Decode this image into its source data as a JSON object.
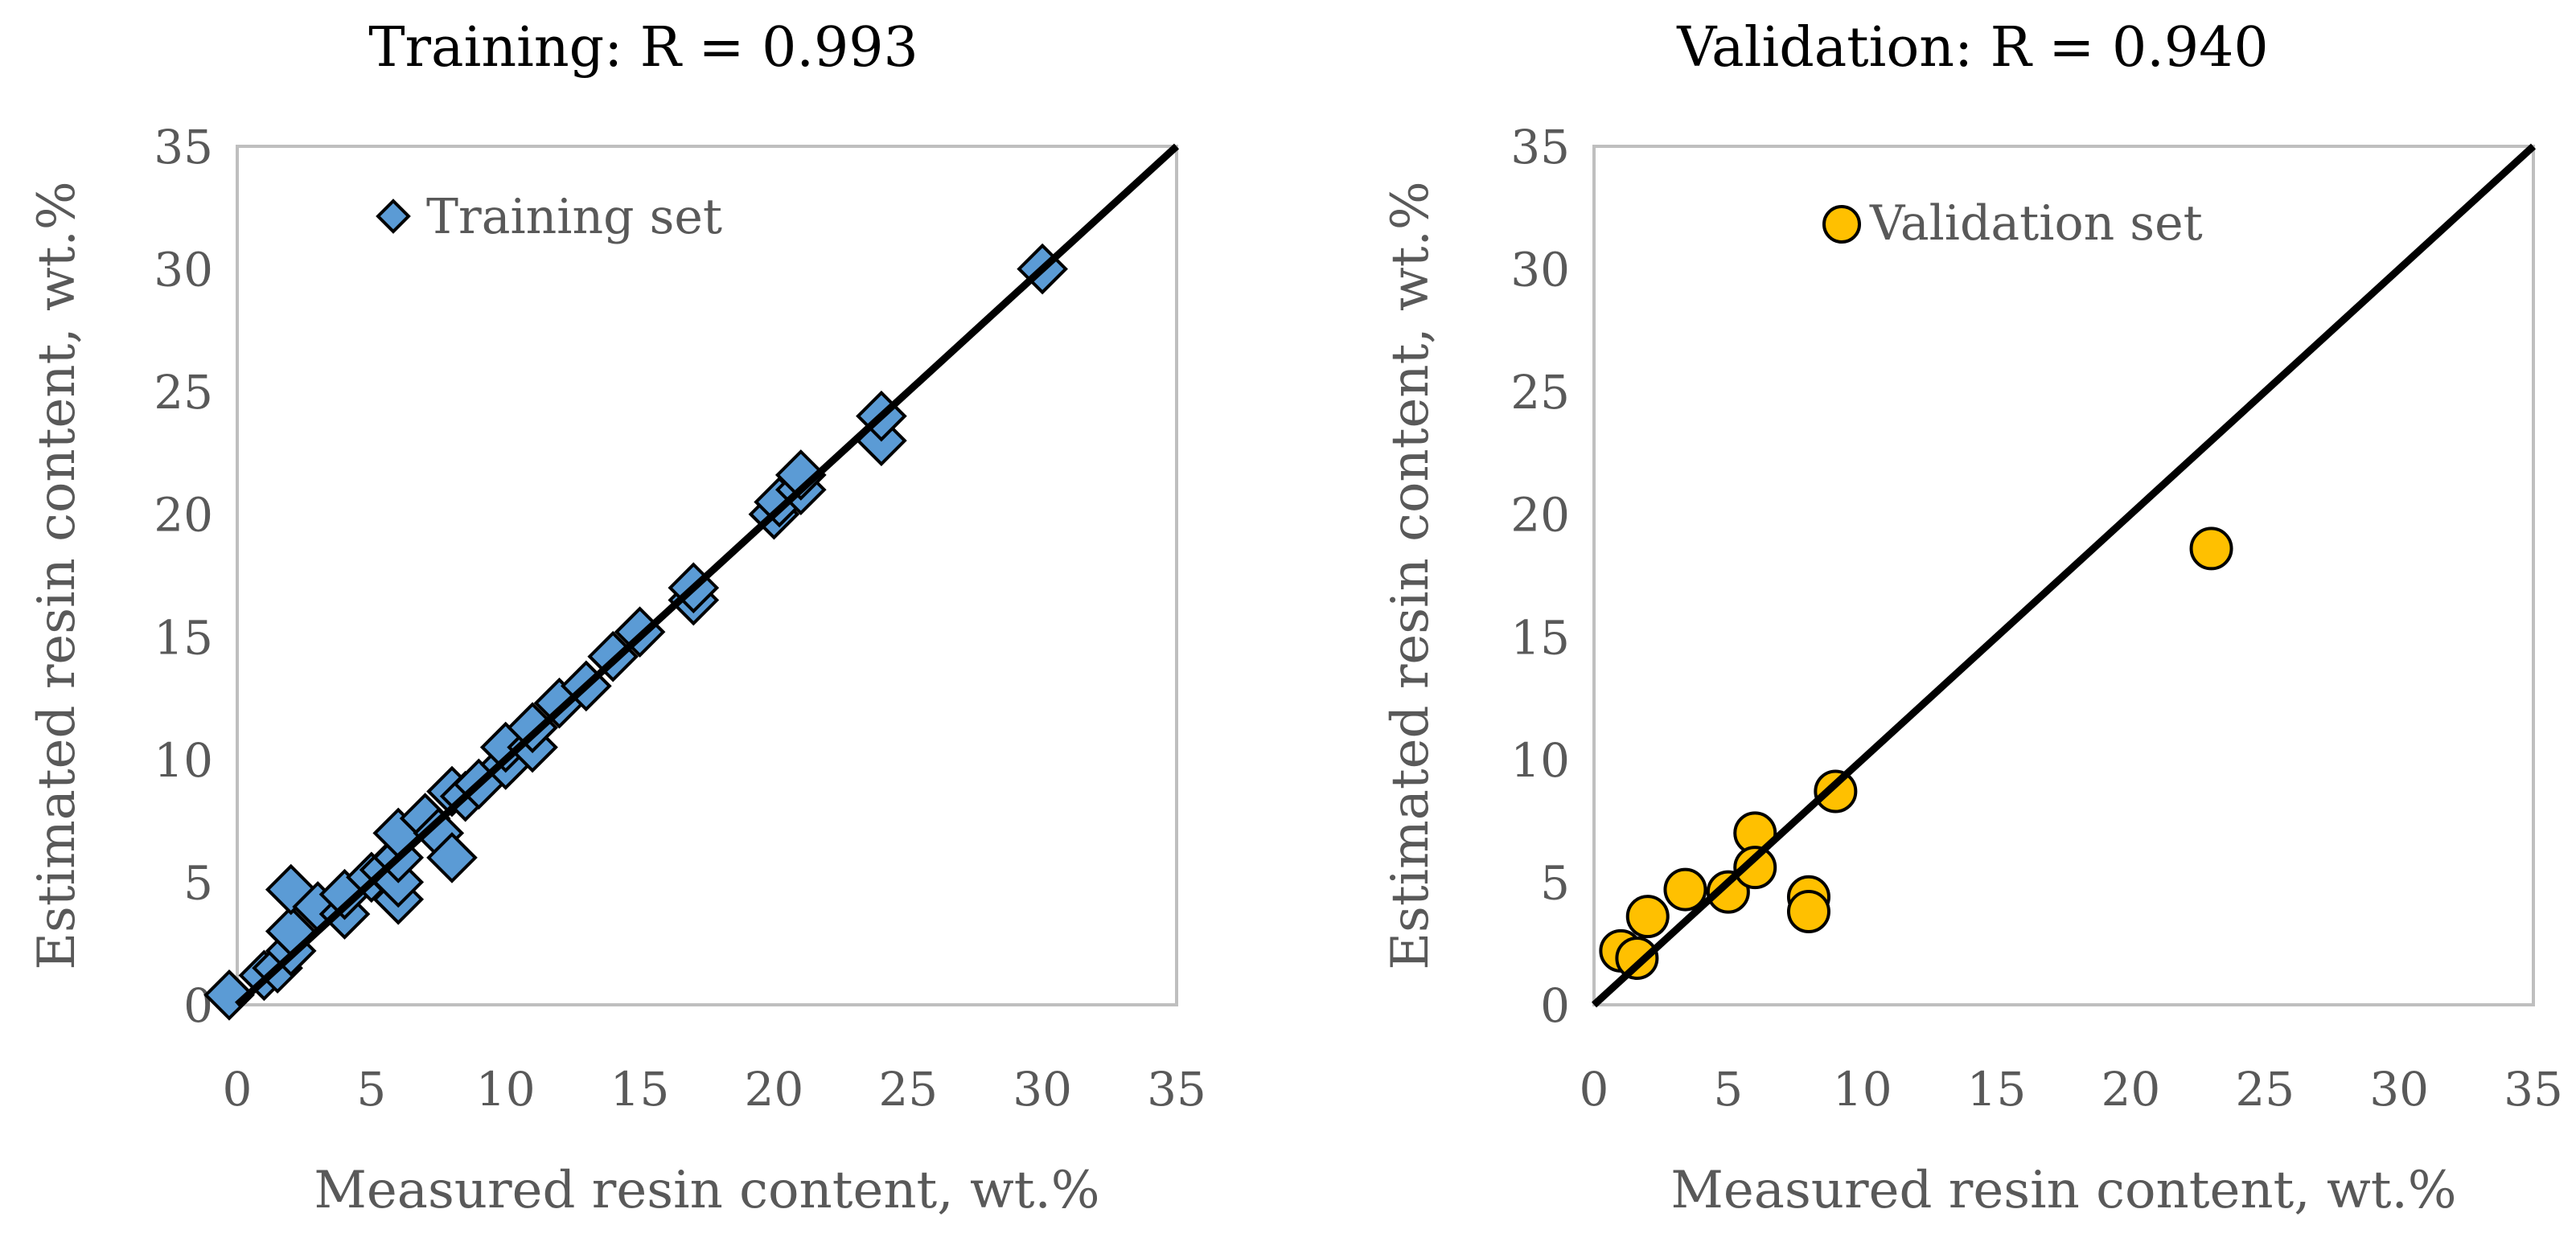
{
  "chart_data": [
    {
      "type": "scatter",
      "title": "Training: R = 0.993",
      "xlabel": "Measured resin content, wt.%",
      "ylabel": "Estimated resin content, wt.%",
      "xlim": [
        0,
        35
      ],
      "ylim": [
        0,
        35
      ],
      "xticks": [
        "0",
        "5",
        "10",
        "15",
        "20",
        "25",
        "30",
        "35"
      ],
      "yticks": [
        "0",
        "5",
        "10",
        "15",
        "20",
        "25",
        "30",
        "35"
      ],
      "grid": false,
      "legend_position": "top-left",
      "marker": "diamond",
      "marker_color": "#5B9BD5",
      "reference_line": {
        "name": "y = x",
        "from": [
          0,
          0
        ],
        "to": [
          35,
          35
        ],
        "color": "#000000"
      },
      "series": [
        {
          "name": "Training set",
          "points": [
            [
              -0.3,
              0.4
            ],
            [
              1,
              1.2
            ],
            [
              1.5,
              1.5
            ],
            [
              2,
              2.2
            ],
            [
              2,
              3
            ],
            [
              2,
              4.7
            ],
            [
              3,
              4
            ],
            [
              4,
              3.7
            ],
            [
              4,
              4.5
            ],
            [
              5,
              5.2
            ],
            [
              5.5,
              5.5
            ],
            [
              6,
              4.3
            ],
            [
              6,
              5
            ],
            [
              6,
              6
            ],
            [
              6,
              7
            ],
            [
              7,
              7.6
            ],
            [
              7.5,
              7
            ],
            [
              8,
              6
            ],
            [
              8,
              8.7
            ],
            [
              8.5,
              8.5
            ],
            [
              9,
              9
            ],
            [
              10,
              9.8
            ],
            [
              10,
              10.5
            ],
            [
              11,
              10.5
            ],
            [
              11,
              11.3
            ],
            [
              12,
              12.3
            ],
            [
              13,
              13
            ],
            [
              14,
              14.2
            ],
            [
              15,
              15.2
            ],
            [
              17,
              16.5
            ],
            [
              17,
              17
            ],
            [
              20,
              20
            ],
            [
              20.2,
              20.5
            ],
            [
              21,
              21
            ],
            [
              21,
              21.6
            ],
            [
              24,
              23
            ],
            [
              24,
              24
            ],
            [
              30,
              30
            ]
          ]
        }
      ]
    },
    {
      "type": "scatter",
      "title": "Validation: R = 0.940",
      "xlabel": "Measured resin content, wt.%",
      "ylabel": "Estimated resin content, wt.%",
      "xlim": [
        0,
        35
      ],
      "ylim": [
        0,
        35
      ],
      "xticks": [
        "0",
        "5",
        "10",
        "15",
        "20",
        "25",
        "30",
        "35"
      ],
      "yticks": [
        "0",
        "5",
        "10",
        "15",
        "20",
        "25",
        "30",
        "35"
      ],
      "grid": false,
      "legend_position": "top-center",
      "marker": "circle",
      "marker_color": "#FFC000",
      "reference_line": {
        "name": "y = x",
        "from": [
          0,
          0
        ],
        "to": [
          35,
          35
        ],
        "color": "#000000"
      },
      "series": [
        {
          "name": "Validation set",
          "points": [
            [
              1,
              2.2
            ],
            [
              1.6,
              1.9
            ],
            [
              2,
              3.6
            ],
            [
              3.4,
              4.7
            ],
            [
              5,
              4.6
            ],
            [
              6,
              7
            ],
            [
              6,
              5.6
            ],
            [
              8,
              4.4
            ],
            [
              8,
              3.8
            ],
            [
              9,
              8.7
            ],
            [
              23,
              18.6
            ]
          ]
        }
      ]
    }
  ]
}
